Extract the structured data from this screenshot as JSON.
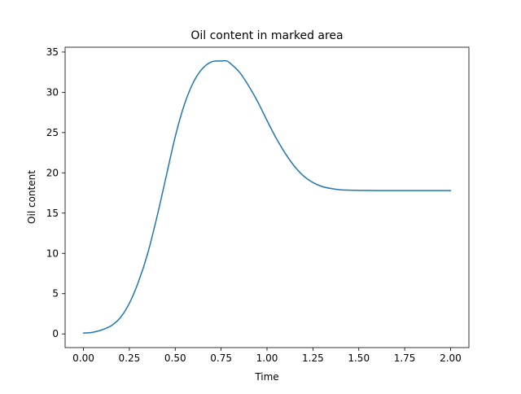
{
  "chart_data": {
    "type": "line",
    "title": "Oil content in marked area",
    "xlabel": "Time",
    "ylabel": "Oil content",
    "xlim": [
      -0.1,
      2.1
    ],
    "ylim": [
      -1.7,
      35.6
    ],
    "grid": false,
    "xticks": [
      {
        "value": 0.0,
        "label": "0.00"
      },
      {
        "value": 0.25,
        "label": "0.25"
      },
      {
        "value": 0.5,
        "label": "0.50"
      },
      {
        "value": 0.75,
        "label": "0.75"
      },
      {
        "value": 1.0,
        "label": "1.00"
      },
      {
        "value": 1.25,
        "label": "1.25"
      },
      {
        "value": 1.5,
        "label": "1.50"
      },
      {
        "value": 1.75,
        "label": "1.75"
      },
      {
        "value": 2.0,
        "label": "2.00"
      }
    ],
    "yticks": [
      {
        "value": 0,
        "label": "0"
      },
      {
        "value": 5,
        "label": "5"
      },
      {
        "value": 10,
        "label": "10"
      },
      {
        "value": 15,
        "label": "15"
      },
      {
        "value": 20,
        "label": "20"
      },
      {
        "value": 25,
        "label": "25"
      },
      {
        "value": 30,
        "label": "30"
      },
      {
        "value": 35,
        "label": "35"
      }
    ],
    "series": [
      {
        "color": "#1f77b4",
        "x": [
          0.0,
          0.05,
          0.1,
          0.15,
          0.2,
          0.25,
          0.3,
          0.35,
          0.4,
          0.45,
          0.5,
          0.55,
          0.6,
          0.65,
          0.7,
          0.75,
          0.78,
          0.8,
          0.85,
          0.9,
          0.95,
          1.0,
          1.05,
          1.1,
          1.15,
          1.2,
          1.25,
          1.3,
          1.35,
          1.4,
          1.45,
          1.5,
          1.6,
          1.7,
          1.8,
          1.9,
          2.0
        ],
        "y": [
          0.1,
          0.2,
          0.5,
          1.0,
          2.0,
          3.8,
          6.5,
          10.0,
          14.5,
          19.5,
          24.5,
          28.5,
          31.3,
          33.0,
          33.8,
          33.9,
          33.9,
          33.6,
          32.5,
          30.8,
          28.8,
          26.5,
          24.3,
          22.4,
          20.8,
          19.6,
          18.8,
          18.3,
          18.05,
          17.9,
          17.85,
          17.82,
          17.8,
          17.8,
          17.8,
          17.8,
          17.8
        ]
      }
    ]
  }
}
